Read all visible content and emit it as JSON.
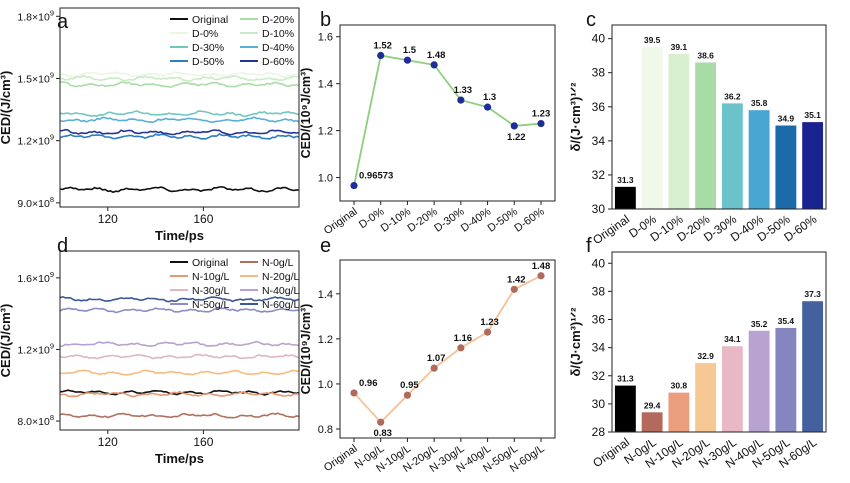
{
  "chart_data": [
    {
      "panel": "a",
      "type": "line",
      "xlabel": "Time/ps",
      "ylabel": "CED/(J/cm³)",
      "xlim": [
        100,
        200
      ],
      "ylim": [
        880000000.0,
        1840000000.0
      ],
      "xticks": [
        120,
        160
      ],
      "yticks": [
        {
          "v": 900000000.0,
          "m": "9.0×10",
          "e": "8"
        },
        {
          "v": 1200000000.0,
          "m": "1.2×10",
          "e": "9"
        },
        {
          "v": 1500000000.0,
          "m": "1.5×10",
          "e": "9"
        },
        {
          "v": 1800000000.0,
          "m": "1.8×10",
          "e": "9"
        }
      ],
      "legend_position": "top-right",
      "series": [
        {
          "name": "Original",
          "color": "#111111",
          "level": 965000000.0
        },
        {
          "name": "D-20%",
          "color": "#a9dca6",
          "level": 1470000000.0
        },
        {
          "name": "D-0%",
          "color": "#eaf6e2",
          "level": 1520000000.0
        },
        {
          "name": "D-10%",
          "color": "#c9ebc4",
          "level": 1500000000.0
        },
        {
          "name": "D-30%",
          "color": "#72c6c2",
          "level": 1330000000.0
        },
        {
          "name": "D-40%",
          "color": "#5ab0d4",
          "level": 1300000000.0
        },
        {
          "name": "D-50%",
          "color": "#2b7fbd",
          "level": 1220000000.0
        },
        {
          "name": "D-60%",
          "color": "#253494",
          "level": 1240000000.0
        }
      ]
    },
    {
      "panel": "b",
      "type": "line",
      "categories": [
        "Original",
        "D-0%",
        "D-10%",
        "D-20%",
        "D-30%",
        "D-40%",
        "D-50%",
        "D-60%"
      ],
      "values": [
        0.96573,
        1.52,
        1.5,
        1.48,
        1.33,
        1.3,
        1.22,
        1.23
      ],
      "labels": [
        "0.96573",
        "1.52",
        "1.5",
        "1.48",
        "1.33",
        "1.3",
        "1.22",
        "1.23"
      ],
      "ylabel": "CED/(10⁹J/cm³)",
      "ylim": [
        0.9,
        1.65
      ],
      "yticks": [
        1.0,
        1.2,
        1.4,
        1.6
      ],
      "line_color": "#8fce7e",
      "marker_color": "#1f2d9a"
    },
    {
      "panel": "c",
      "type": "bar",
      "categories": [
        "Original",
        "D-0%",
        "D-10%",
        "D-20%",
        "D-30%",
        "D-40%",
        "D-50%",
        "D-60%"
      ],
      "values": [
        31.3,
        39.5,
        39.1,
        38.6,
        36.2,
        35.8,
        34.9,
        35.1
      ],
      "labels": [
        "31.3",
        "39.5",
        "39.1",
        "38.6",
        "36.2",
        "35.8",
        "34.9",
        "35.1"
      ],
      "colors": [
        "#000000",
        "#eff8e9",
        "#d8efd0",
        "#a8dba6",
        "#6bc3c9",
        "#48a6d0",
        "#1d6aaa",
        "#1a2490"
      ],
      "ylabel": "δ/(J·cm³)¹ᐟ²",
      "ylim": [
        30,
        40.8
      ],
      "yticks": [
        30,
        32,
        34,
        36,
        38,
        40
      ]
    },
    {
      "panel": "d",
      "type": "line",
      "xlabel": "Time/ps",
      "ylabel": "CED/(J/cm³)",
      "xlim": [
        100,
        200
      ],
      "ylim": [
        750000000.0,
        1750000000.0
      ],
      "xticks": [
        120,
        160
      ],
      "yticks": [
        {
          "v": 800000000.0,
          "m": "8.0×10",
          "e": "8"
        },
        {
          "v": 1200000000.0,
          "m": "1.2×10",
          "e": "9"
        },
        {
          "v": 1600000000.0,
          "m": "1.6×10",
          "e": "9"
        }
      ],
      "legend_position": "top-right",
      "series": [
        {
          "name": "Original",
          "color": "#111111",
          "level": 960000000.0
        },
        {
          "name": "N-0g/L",
          "color": "#b07060",
          "level": 830000000.0
        },
        {
          "name": "N-10g/L",
          "color": "#e69a72",
          "level": 950000000.0
        },
        {
          "name": "N-20g/L",
          "color": "#f4bd80",
          "level": 1070000000.0
        },
        {
          "name": "N-30g/L",
          "color": "#e0b6c4",
          "level": 1160000000.0
        },
        {
          "name": "N-40g/L",
          "color": "#b8a3d0",
          "level": 1230000000.0
        },
        {
          "name": "N-50g/L",
          "color": "#8a8cc4",
          "level": 1420000000.0
        },
        {
          "name": "N-60g/L",
          "color": "#3c5896",
          "level": 1480000000.0
        }
      ]
    },
    {
      "panel": "e",
      "type": "line",
      "categories": [
        "Original",
        "N-0g/L",
        "N-10g/L",
        "N-20g/L",
        "N-30g/L",
        "N-40g/L",
        "N-50g/L",
        "N-60g/L"
      ],
      "values": [
        0.96,
        0.83,
        0.95,
        1.07,
        1.16,
        1.23,
        1.42,
        1.48
      ],
      "labels": [
        "0.96",
        "0.83",
        "0.95",
        "1.07",
        "1.16",
        "1.23",
        "1.42",
        "1.48"
      ],
      "ylabel": "CED/(10⁹J/cm³)",
      "ylim": [
        0.76,
        1.55
      ],
      "yticks": [
        0.8,
        1.0,
        1.2,
        1.4
      ],
      "line_color": "#f6c196",
      "marker_color": "#b06a5c"
    },
    {
      "panel": "f",
      "type": "bar",
      "categories": [
        "Original",
        "N-0g/L",
        "N-10g/L",
        "N-20g/L",
        "N-30g/L",
        "N-40g/L",
        "N-50g/L",
        "N-60g/L"
      ],
      "values": [
        31.3,
        29.4,
        30.8,
        32.9,
        34.1,
        35.2,
        35.4,
        37.3
      ],
      "labels": [
        "31.3",
        "29.4",
        "30.8",
        "32.9",
        "34.1",
        "35.2",
        "35.4",
        "37.3"
      ],
      "colors": [
        "#000000",
        "#b3695c",
        "#ea9e7e",
        "#f6c894",
        "#e8b8c5",
        "#b8a2cf",
        "#8585bf",
        "#44609e"
      ],
      "ylabel": "δ/(J·cm³)¹ᐟ²",
      "ylim": [
        28,
        40.8
      ],
      "yticks": [
        28,
        30,
        32,
        34,
        36,
        38,
        40
      ]
    }
  ],
  "panel_letters": [
    "a",
    "b",
    "c",
    "d",
    "e",
    "f"
  ]
}
